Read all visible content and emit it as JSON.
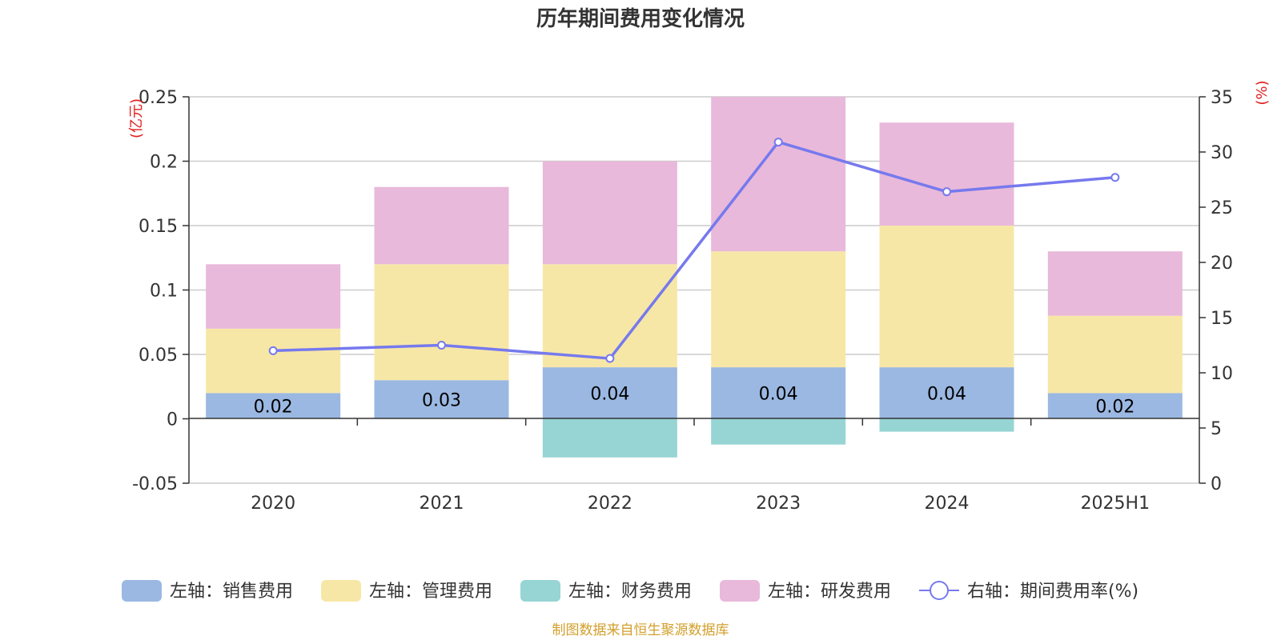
{
  "chart_data": {
    "type": "bar",
    "title": "历年期间费用变化情况",
    "categories": [
      "2020",
      "2021",
      "2022",
      "2023",
      "2024",
      "2025H1"
    ],
    "left_axis": {
      "unit": "(亿元)",
      "ylim": [
        -0.05,
        0.25
      ],
      "ticks": [
        "-0.05",
        "0",
        "0.05",
        "0.1",
        "0.15",
        "0.2",
        "0.25"
      ]
    },
    "right_axis": {
      "unit": "(%)",
      "ylim": [
        0,
        35
      ],
      "ticks": [
        "0",
        "5",
        "10",
        "15",
        "20",
        "25",
        "30",
        "35"
      ]
    },
    "series": [
      {
        "name": "左轴：销售费用",
        "type": "bar",
        "axis": "left",
        "color": "#9bb8e2",
        "values": [
          0.02,
          0.03,
          0.04,
          0.04,
          0.04,
          0.02
        ],
        "labels": [
          "0.02",
          "0.03",
          "0.04",
          "0.04",
          "0.04",
          "0.02"
        ]
      },
      {
        "name": "左轴：管理费用",
        "type": "bar",
        "axis": "left",
        "color": "#f7e7a6",
        "values": [
          0.05,
          0.09,
          0.08,
          0.09,
          0.11,
          0.06
        ]
      },
      {
        "name": "左轴：财务费用",
        "type": "bar",
        "axis": "left",
        "color": "#97d4d4",
        "values": [
          0,
          0,
          -0.03,
          -0.02,
          -0.01,
          0
        ]
      },
      {
        "name": "左轴：研发费用",
        "type": "bar",
        "axis": "left",
        "color": "#e8b9da",
        "values": [
          0.05,
          0.06,
          0.08,
          0.12,
          0.08,
          0.05
        ]
      },
      {
        "name": "右轴：期间费用率(%)",
        "type": "line",
        "axis": "right",
        "color": "#7679ee",
        "values": [
          12.0,
          12.5,
          11.3,
          30.9,
          26.4,
          27.7
        ]
      }
    ],
    "grid": true,
    "legend_position": "bottom",
    "source": "制图数据来自恒生聚源数据库",
    "source_color": "#d29f2b",
    "unit_color": "#e02020"
  }
}
